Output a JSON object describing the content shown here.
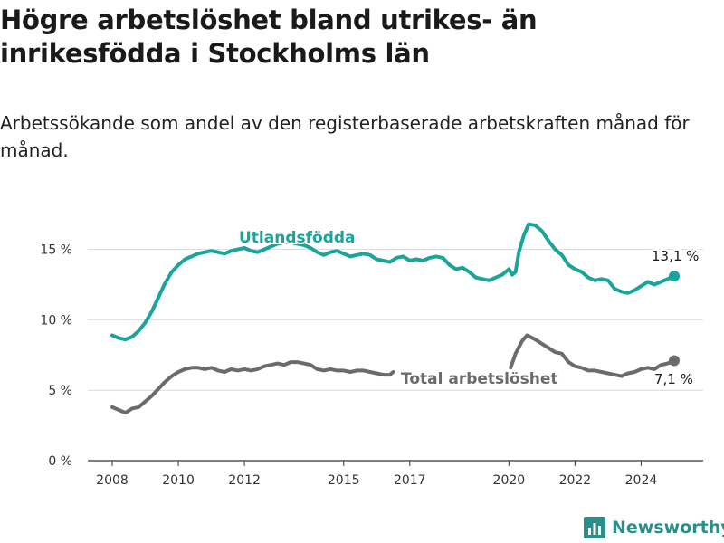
{
  "header": {
    "title": "Högre arbetslöshet bland utrikes- än inrikesfödda i Stockholms län",
    "subtitle": "Arbetssökande som andel av den registerbaserade arbetskraften månad för månad."
  },
  "brand": {
    "name": "Newsworthy",
    "icon": "newsworthy-logo-icon",
    "color": "#2a8f8a"
  },
  "chart_data": {
    "type": "line",
    "x_unit": "year",
    "y_unit": "percent",
    "ylim": [
      0,
      17.5
    ],
    "xlim": [
      2007.55,
      2025.85
    ],
    "y_ticks": [
      0,
      5,
      10,
      15
    ],
    "y_tick_labels": [
      "0 %",
      "5 %",
      "10 %",
      "15 %"
    ],
    "x_ticks": [
      2008,
      2010,
      2012,
      2015,
      2017,
      2020,
      2022,
      2024
    ],
    "x_tick_labels": [
      "2008",
      "2010",
      "2012",
      "2015",
      "2017",
      "2020",
      "2022",
      "2024"
    ],
    "grid": "horizontal",
    "series": [
      {
        "name": "Utlandsfödda",
        "color": "#1aa59a",
        "end_label": "13,1 %",
        "segments": [
          [
            [
              2008.0,
              8.9
            ],
            [
              2008.2,
              8.7
            ],
            [
              2008.4,
              8.6
            ],
            [
              2008.6,
              8.8
            ],
            [
              2008.8,
              9.2
            ],
            [
              2009.0,
              9.8
            ],
            [
              2009.2,
              10.6
            ],
            [
              2009.4,
              11.6
            ],
            [
              2009.6,
              12.6
            ],
            [
              2009.8,
              13.4
            ],
            [
              2010.0,
              13.9
            ],
            [
              2010.2,
              14.3
            ],
            [
              2010.4,
              14.5
            ],
            [
              2010.6,
              14.7
            ],
            [
              2010.8,
              14.8
            ],
            [
              2011.0,
              14.9
            ],
            [
              2011.2,
              14.8
            ],
            [
              2011.4,
              14.7
            ],
            [
              2011.6,
              14.9
            ],
            [
              2011.8,
              15.0
            ],
            [
              2012.0,
              15.1
            ],
            [
              2012.2,
              14.9
            ],
            [
              2012.4,
              14.8
            ],
            [
              2012.6,
              15.0
            ],
            [
              2012.8,
              15.2
            ],
            [
              2013.0,
              15.4
            ],
            [
              2013.2,
              15.5
            ],
            [
              2013.4,
              15.5
            ],
            [
              2013.6,
              15.4
            ],
            [
              2013.8,
              15.3
            ],
            [
              2014.0,
              15.1
            ],
            [
              2014.2,
              14.8
            ],
            [
              2014.4,
              14.6
            ],
            [
              2014.6,
              14.8
            ],
            [
              2014.8,
              14.9
            ],
            [
              2015.0,
              14.7
            ],
            [
              2015.2,
              14.5
            ],
            [
              2015.4,
              14.6
            ],
            [
              2015.6,
              14.7
            ],
            [
              2015.8,
              14.6
            ],
            [
              2016.0,
              14.3
            ],
            [
              2016.2,
              14.2
            ],
            [
              2016.4,
              14.1
            ],
            [
              2016.6,
              14.4
            ],
            [
              2016.8,
              14.5
            ],
            [
              2017.0,
              14.2
            ],
            [
              2017.2,
              14.3
            ],
            [
              2017.4,
              14.2
            ],
            [
              2017.6,
              14.4
            ],
            [
              2017.8,
              14.5
            ],
            [
              2018.0,
              14.4
            ],
            [
              2018.2,
              13.9
            ],
            [
              2018.4,
              13.6
            ],
            [
              2018.6,
              13.7
            ],
            [
              2018.8,
              13.4
            ],
            [
              2019.0,
              13.0
            ],
            [
              2019.2,
              12.9
            ],
            [
              2019.4,
              12.8
            ],
            [
              2019.6,
              13.0
            ],
            [
              2019.8,
              13.2
            ],
            [
              2020.0,
              13.6
            ],
            [
              2020.1,
              13.2
            ],
            [
              2020.2,
              13.4
            ],
            [
              2020.3,
              14.8
            ],
            [
              2020.45,
              16.0
            ],
            [
              2020.6,
              16.8
            ],
            [
              2020.8,
              16.7
            ],
            [
              2021.0,
              16.3
            ],
            [
              2021.2,
              15.6
            ],
            [
              2021.4,
              15.0
            ],
            [
              2021.6,
              14.6
            ],
            [
              2021.8,
              13.9
            ],
            [
              2022.0,
              13.6
            ],
            [
              2022.2,
              13.4
            ],
            [
              2022.4,
              13.0
            ],
            [
              2022.6,
              12.8
            ],
            [
              2022.8,
              12.9
            ],
            [
              2023.0,
              12.8
            ],
            [
              2023.2,
              12.2
            ],
            [
              2023.4,
              12.0
            ],
            [
              2023.6,
              11.9
            ],
            [
              2023.8,
              12.1
            ],
            [
              2024.0,
              12.4
            ],
            [
              2024.2,
              12.7
            ],
            [
              2024.4,
              12.5
            ],
            [
              2024.6,
              12.7
            ],
            [
              2024.8,
              12.9
            ],
            [
              2025.0,
              13.1
            ]
          ]
        ]
      },
      {
        "name": "Total arbetslöshet",
        "color": "#6b6b6b",
        "end_label": "7,1 %",
        "segments": [
          [
            [
              2008.0,
              3.8
            ],
            [
              2008.2,
              3.6
            ],
            [
              2008.4,
              3.4
            ],
            [
              2008.6,
              3.7
            ],
            [
              2008.8,
              3.8
            ],
            [
              2009.0,
              4.2
            ],
            [
              2009.2,
              4.6
            ],
            [
              2009.4,
              5.1
            ],
            [
              2009.6,
              5.6
            ],
            [
              2009.8,
              6.0
            ],
            [
              2010.0,
              6.3
            ],
            [
              2010.2,
              6.5
            ],
            [
              2010.4,
              6.6
            ],
            [
              2010.6,
              6.6
            ],
            [
              2010.8,
              6.5
            ],
            [
              2011.0,
              6.6
            ],
            [
              2011.2,
              6.4
            ],
            [
              2011.4,
              6.3
            ],
            [
              2011.6,
              6.5
            ],
            [
              2011.8,
              6.4
            ],
            [
              2012.0,
              6.5
            ],
            [
              2012.2,
              6.4
            ],
            [
              2012.4,
              6.5
            ],
            [
              2012.6,
              6.7
            ],
            [
              2012.8,
              6.8
            ],
            [
              2013.0,
              6.9
            ],
            [
              2013.2,
              6.8
            ],
            [
              2013.4,
              7.0
            ],
            [
              2013.6,
              7.0
            ],
            [
              2013.8,
              6.9
            ],
            [
              2014.0,
              6.8
            ],
            [
              2014.2,
              6.5
            ],
            [
              2014.4,
              6.4
            ],
            [
              2014.6,
              6.5
            ],
            [
              2014.8,
              6.4
            ],
            [
              2015.0,
              6.4
            ],
            [
              2015.2,
              6.3
            ],
            [
              2015.4,
              6.4
            ],
            [
              2015.6,
              6.4
            ],
            [
              2015.8,
              6.3
            ],
            [
              2016.0,
              6.2
            ],
            [
              2016.2,
              6.1
            ],
            [
              2016.4,
              6.1
            ],
            [
              2016.5,
              6.3
            ]
          ],
          [
            [
              2020.05,
              6.6
            ],
            [
              2020.2,
              7.6
            ],
            [
              2020.4,
              8.5
            ],
            [
              2020.55,
              8.9
            ],
            [
              2020.8,
              8.6
            ],
            [
              2021.0,
              8.3
            ],
            [
              2021.2,
              8.0
            ],
            [
              2021.4,
              7.7
            ],
            [
              2021.6,
              7.6
            ],
            [
              2021.8,
              7.0
            ],
            [
              2022.0,
              6.7
            ],
            [
              2022.2,
              6.6
            ],
            [
              2022.4,
              6.4
            ],
            [
              2022.6,
              6.4
            ],
            [
              2022.8,
              6.3
            ],
            [
              2023.0,
              6.2
            ],
            [
              2023.2,
              6.1
            ],
            [
              2023.4,
              6.0
            ],
            [
              2023.6,
              6.2
            ],
            [
              2023.8,
              6.3
            ],
            [
              2024.0,
              6.5
            ],
            [
              2024.2,
              6.6
            ],
            [
              2024.4,
              6.5
            ],
            [
              2024.6,
              6.8
            ],
            [
              2024.8,
              6.9
            ],
            [
              2025.0,
              7.1
            ]
          ]
        ]
      }
    ]
  }
}
